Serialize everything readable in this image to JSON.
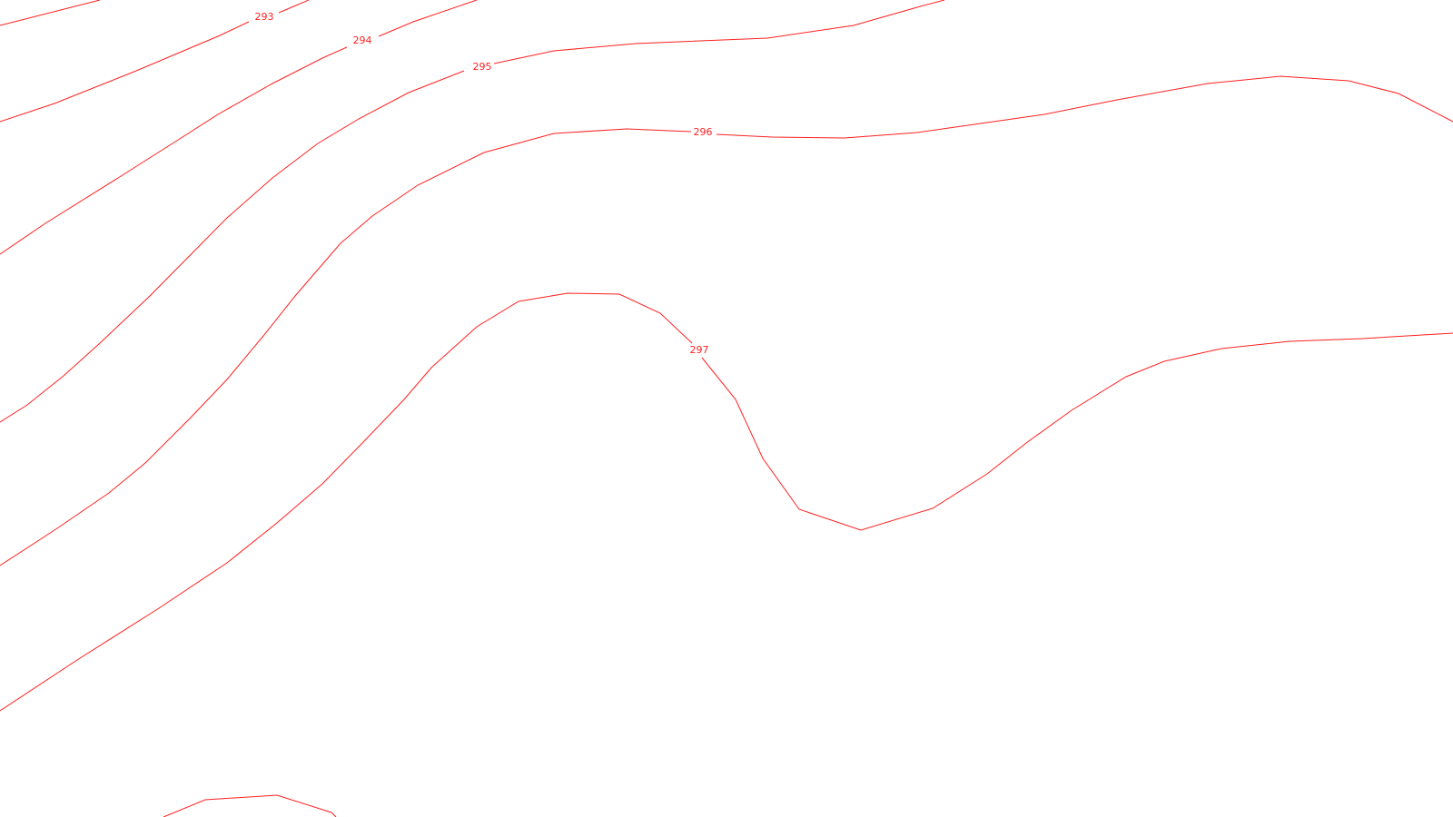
{
  "map": {
    "line_color": "#ff2020",
    "label_color": "#ff2020",
    "background_color": "#ffffff",
    "contours": [
      {
        "level": 293,
        "label": "293"
      },
      {
        "level": 294,
        "label": "294"
      },
      {
        "level": 295,
        "label": "295"
      },
      {
        "level": 296,
        "label": "296"
      },
      {
        "level": 297,
        "label": "297"
      }
    ]
  }
}
